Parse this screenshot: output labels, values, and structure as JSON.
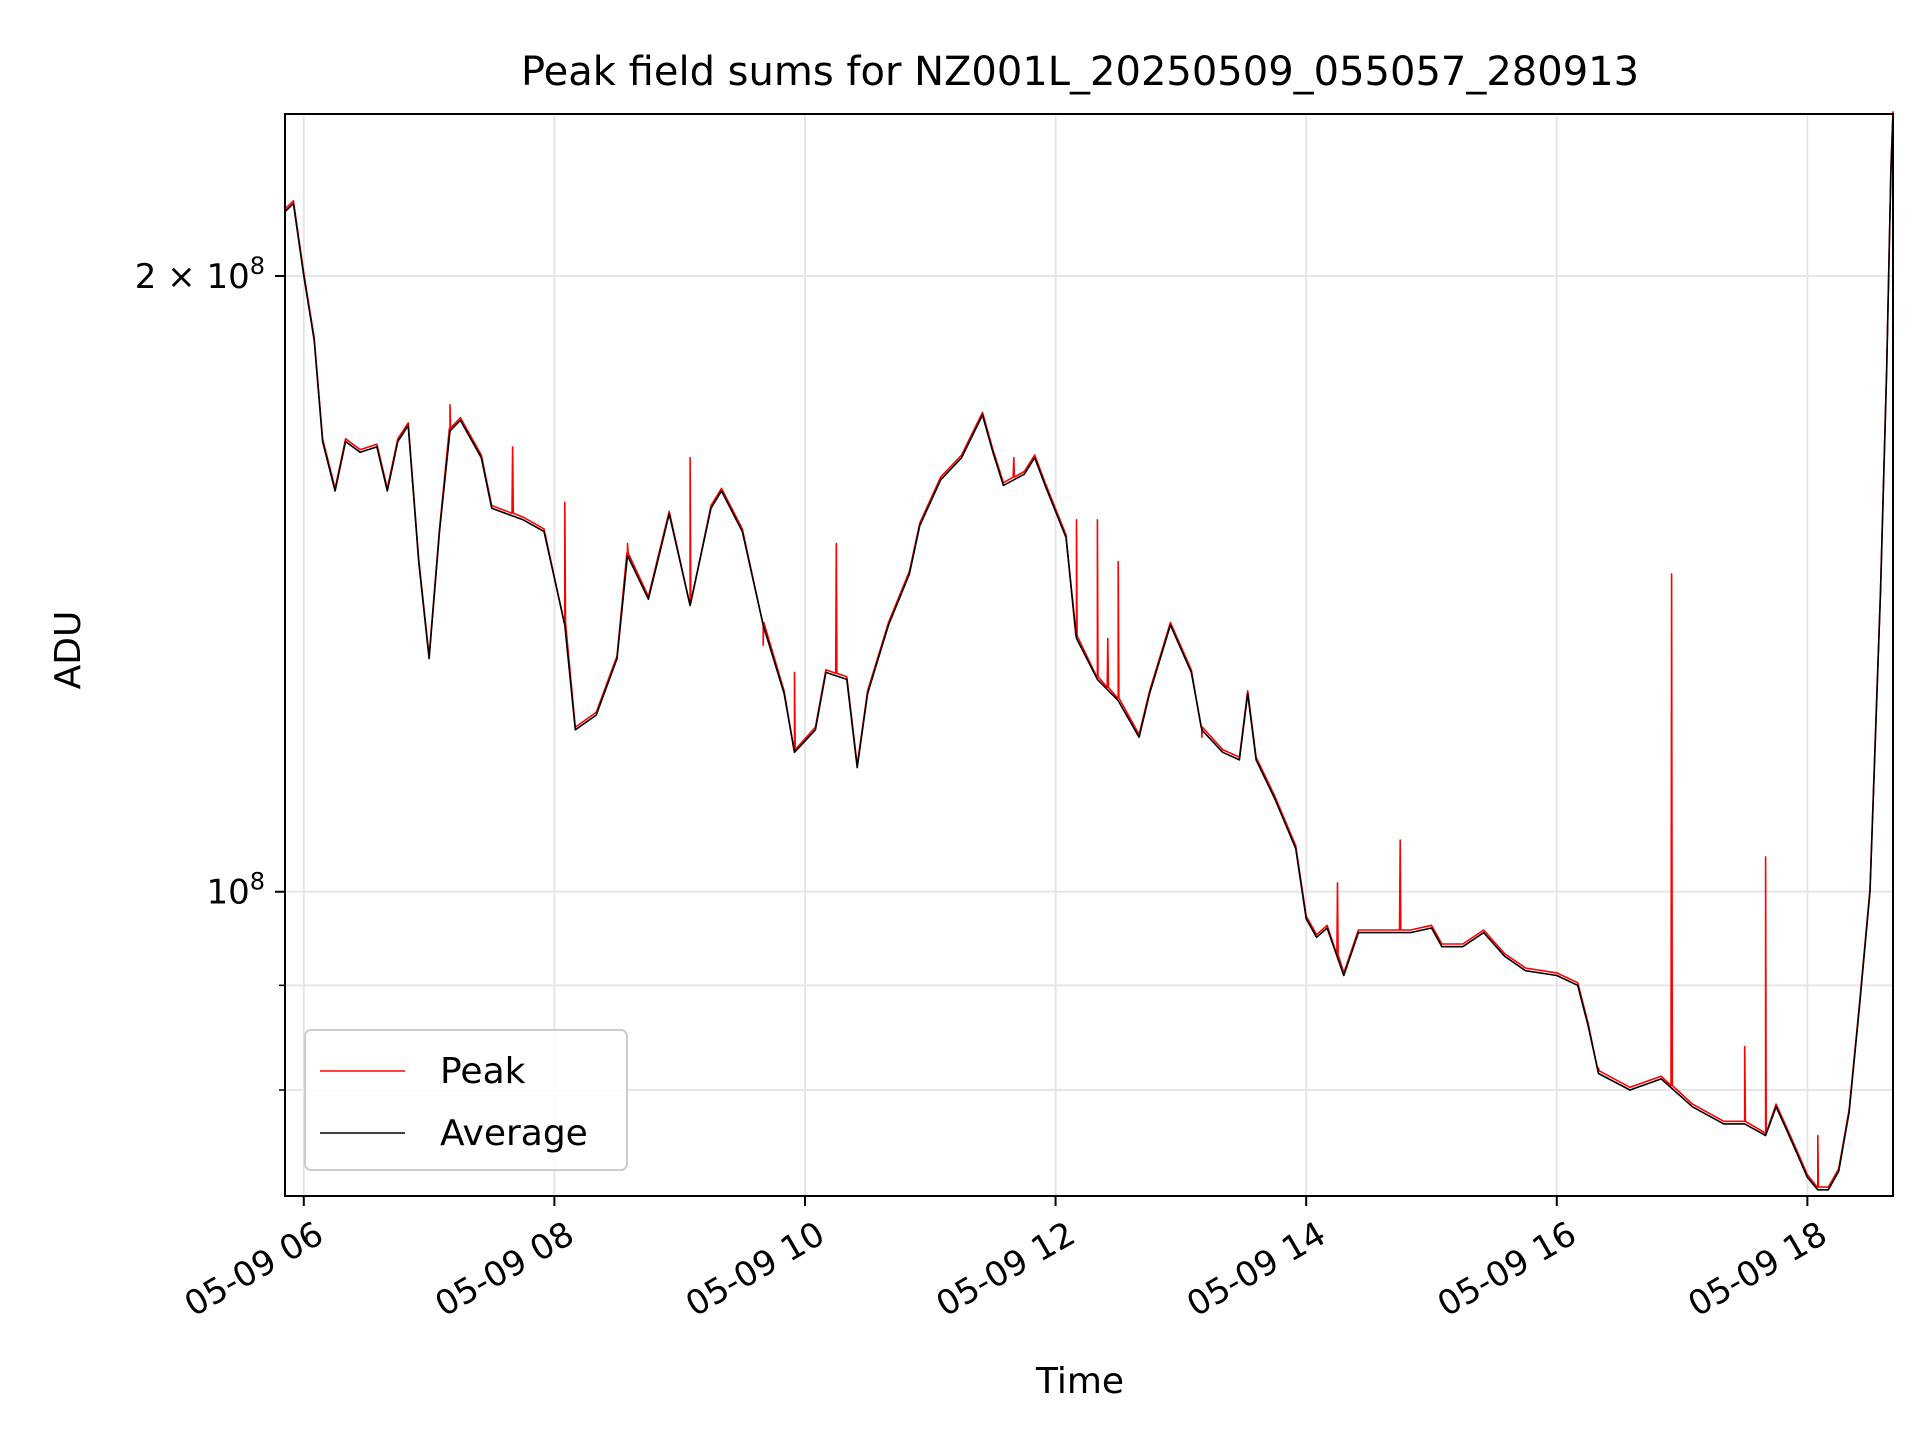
{
  "chart_data": {
    "type": "line",
    "title": "Peak field sums for NZ001L_20250509_055057_280913",
    "xlabel": "Time",
    "ylabel": "ADU",
    "y_scale": "log",
    "grid": true,
    "legend_position": "lower-left",
    "xlim": [
      "05-09 05:51",
      "05-09 18:41"
    ],
    "ylim": [
      71000000,
      240000000
    ],
    "x_ticks": [
      "05-09 06",
      "05-09 08",
      "05-09 10",
      "05-09 12",
      "05-09 14",
      "05-09 16",
      "05-09 18"
    ],
    "x_tick_hours": [
      6,
      8,
      10,
      12,
      14,
      16,
      18
    ],
    "y_ticks": [
      {
        "value": 100000000,
        "base": "10",
        "exp": "8",
        "coef": ""
      },
      {
        "value": 200000000,
        "base": "10",
        "exp": "8",
        "coef": "2 × "
      }
    ],
    "y_minor_ticks": [
      70000000,
      80000000,
      90000000
    ],
    "series": [
      {
        "name": "Average",
        "color": "#000000",
        "points": [
          [
            "05-09 05:51",
            215000000
          ],
          [
            "05-09 05:55",
            217000000
          ],
          [
            "05-09 06:00",
            200000000
          ],
          [
            "05-09 06:05",
            186000000
          ],
          [
            "05-09 06:09",
            166000000
          ],
          [
            "05-09 06:15",
            157000000
          ],
          [
            "05-09 06:20",
            166000000
          ],
          [
            "05-09 06:27",
            164000000
          ],
          [
            "05-09 06:35",
            165000000
          ],
          [
            "05-09 06:40",
            157000000
          ],
          [
            "05-09 06:45",
            166000000
          ],
          [
            "05-09 06:50",
            169000000
          ],
          [
            "05-09 06:55",
            145000000
          ],
          [
            "05-09 07:00",
            130000000
          ],
          [
            "05-09 07:05",
            150000000
          ],
          [
            "05-09 07:10",
            168000000
          ],
          [
            "05-09 07:15",
            170000000
          ],
          [
            "05-09 07:25",
            163000000
          ],
          [
            "05-09 07:30",
            154000000
          ],
          [
            "05-09 07:45",
            152000000
          ],
          [
            "05-09 07:55",
            150000000
          ],
          [
            "05-09 08:05",
            135000000
          ],
          [
            "05-09 08:10",
            120000000
          ],
          [
            "05-09 08:20",
            122000000
          ],
          [
            "05-09 08:30",
            130000000
          ],
          [
            "05-09 08:35",
            146000000
          ],
          [
            "05-09 08:45",
            139000000
          ],
          [
            "05-09 08:55",
            153000000
          ],
          [
            "05-09 09:05",
            138000000
          ],
          [
            "05-09 09:15",
            154000000
          ],
          [
            "05-09 09:20",
            157000000
          ],
          [
            "05-09 09:30",
            150000000
          ],
          [
            "05-09 09:40",
            135000000
          ],
          [
            "05-09 09:50",
            125000000
          ],
          [
            "05-09 09:55",
            117000000
          ],
          [
            "05-09 10:05",
            120000000
          ],
          [
            "05-09 10:10",
            128000000
          ],
          [
            "05-09 10:20",
            127000000
          ],
          [
            "05-09 10:25",
            115000000
          ],
          [
            "05-09 10:30",
            125000000
          ],
          [
            "05-09 10:40",
            135000000
          ],
          [
            "05-09 10:50",
            143000000
          ],
          [
            "05-09 10:55",
            151000000
          ],
          [
            "05-09 11:05",
            159000000
          ],
          [
            "05-09 11:15",
            163000000
          ],
          [
            "05-09 11:25",
            171000000
          ],
          [
            "05-09 11:30",
            164000000
          ],
          [
            "05-09 11:35",
            158000000
          ],
          [
            "05-09 11:45",
            160000000
          ],
          [
            "05-09 11:50",
            163000000
          ],
          [
            "05-09 11:55",
            158000000
          ],
          [
            "05-09 12:05",
            149000000
          ],
          [
            "05-09 12:10",
            133000000
          ],
          [
            "05-09 12:20",
            127000000
          ],
          [
            "05-09 12:30",
            124000000
          ],
          [
            "05-09 12:40",
            119000000
          ],
          [
            "05-09 12:45",
            125000000
          ],
          [
            "05-09 12:55",
            135000000
          ],
          [
            "05-09 13:05",
            128000000
          ],
          [
            "05-09 13:10",
            120000000
          ],
          [
            "05-09 13:20",
            117000000
          ],
          [
            "05-09 13:28",
            116000000
          ],
          [
            "05-09 13:32",
            125000000
          ],
          [
            "05-09 13:36",
            116000000
          ],
          [
            "05-09 13:45",
            111000000
          ],
          [
            "05-09 13:55",
            105000000
          ],
          [
            "05-09 14:00",
            97000000
          ],
          [
            "05-09 14:05",
            95000000
          ],
          [
            "05-09 14:10",
            96000000
          ],
          [
            "05-09 14:18",
            91000000
          ],
          [
            "05-09 14:25",
            95500000
          ],
          [
            "05-09 14:35",
            95500000
          ],
          [
            "05-09 14:50",
            95500000
          ],
          [
            "05-09 15:00",
            96000000
          ],
          [
            "05-09 15:05",
            94000000
          ],
          [
            "05-09 15:15",
            94000000
          ],
          [
            "05-09 15:25",
            95500000
          ],
          [
            "05-09 15:35",
            93000000
          ],
          [
            "05-09 15:45",
            91500000
          ],
          [
            "05-09 16:00",
            91000000
          ],
          [
            "05-09 16:10",
            90000000
          ],
          [
            "05-09 16:15",
            86000000
          ],
          [
            "05-09 16:20",
            81500000
          ],
          [
            "05-09 16:35",
            80000000
          ],
          [
            "05-09 16:50",
            81000000
          ],
          [
            "05-09 17:05",
            78500000
          ],
          [
            "05-09 17:20",
            77000000
          ],
          [
            "05-09 17:30",
            77000000
          ],
          [
            "05-09 17:35",
            76500000
          ],
          [
            "05-09 17:40",
            76000000
          ],
          [
            "05-09 17:45",
            78500000
          ],
          [
            "05-09 17:50",
            76500000
          ],
          [
            "05-09 17:55",
            74500000
          ],
          [
            "05-09 18:00",
            72500000
          ],
          [
            "05-09 18:05",
            71500000
          ],
          [
            "05-09 18:10",
            71500000
          ],
          [
            "05-09 18:15",
            73000000
          ],
          [
            "05-09 18:20",
            78000000
          ],
          [
            "05-09 18:25",
            88000000
          ],
          [
            "05-09 18:30",
            100000000
          ],
          [
            "05-09 18:35",
            140000000
          ],
          [
            "05-09 18:38",
            180000000
          ],
          [
            "05-09 18:40",
            225000000
          ],
          [
            "05-09 18:41",
            240000000
          ]
        ]
      },
      {
        "name": "Peak",
        "color": "#ff0000",
        "spikes": [
          [
            "05-09 07:10",
            173000000
          ],
          [
            "05-09 07:40",
            165000000
          ],
          [
            "05-09 08:05",
            155000000
          ],
          [
            "05-09 08:35",
            148000000
          ],
          [
            "05-09 09:05",
            163000000
          ],
          [
            "05-09 09:40",
            132000000
          ],
          [
            "05-09 09:55",
            128000000
          ],
          [
            "05-09 10:15",
            148000000
          ],
          [
            "05-09 11:40",
            163000000
          ],
          [
            "05-09 12:10",
            152000000
          ],
          [
            "05-09 12:20",
            152000000
          ],
          [
            "05-09 12:25",
            133000000
          ],
          [
            "05-09 12:30",
            145000000
          ],
          [
            "05-09 13:10",
            119000000
          ],
          [
            "05-09 14:15",
            101000000
          ],
          [
            "05-09 14:45",
            106000000
          ],
          [
            "05-09 16:20",
            82000000
          ],
          [
            "05-09 16:55",
            143000000
          ],
          [
            "05-09 17:30",
            84000000
          ],
          [
            "05-09 17:40",
            104000000
          ],
          [
            "05-09 18:05",
            76000000
          ]
        ]
      }
    ]
  }
}
